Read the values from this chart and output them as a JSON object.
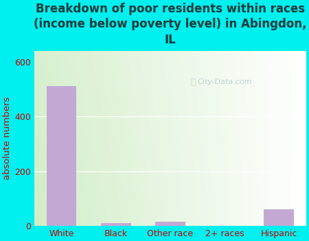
{
  "categories": [
    "White",
    "Black",
    "Other race",
    "2+ races",
    "Hispanic"
  ],
  "values": [
    510,
    10,
    14,
    0,
    60
  ],
  "bar_color": "#c4a8d4",
  "title": "Breakdown of poor residents within races\n(income below poverty level) in Abingdon,\nIL",
  "ylabel": "absolute numbers",
  "ylim": [
    0,
    640
  ],
  "yticks": [
    0,
    200,
    400,
    600
  ],
  "bg_outer": "#00EFEF",
  "bg_inner_topleft": "#c8e6c0",
  "bg_inner_topright": "#e8f4e8",
  "bg_inner_bottomleft": "#d8ecd4",
  "bg_inner_bottomright": "#f8fbf8",
  "title_fontsize": 12,
  "title_color": "#1a3a3a",
  "label_fontsize": 9.5,
  "tick_fontsize": 9,
  "tick_color": "#cc0000",
  "watermark": "City-Data.com",
  "gridline_color": "#ffffff",
  "gridline_alpha": 0.9
}
